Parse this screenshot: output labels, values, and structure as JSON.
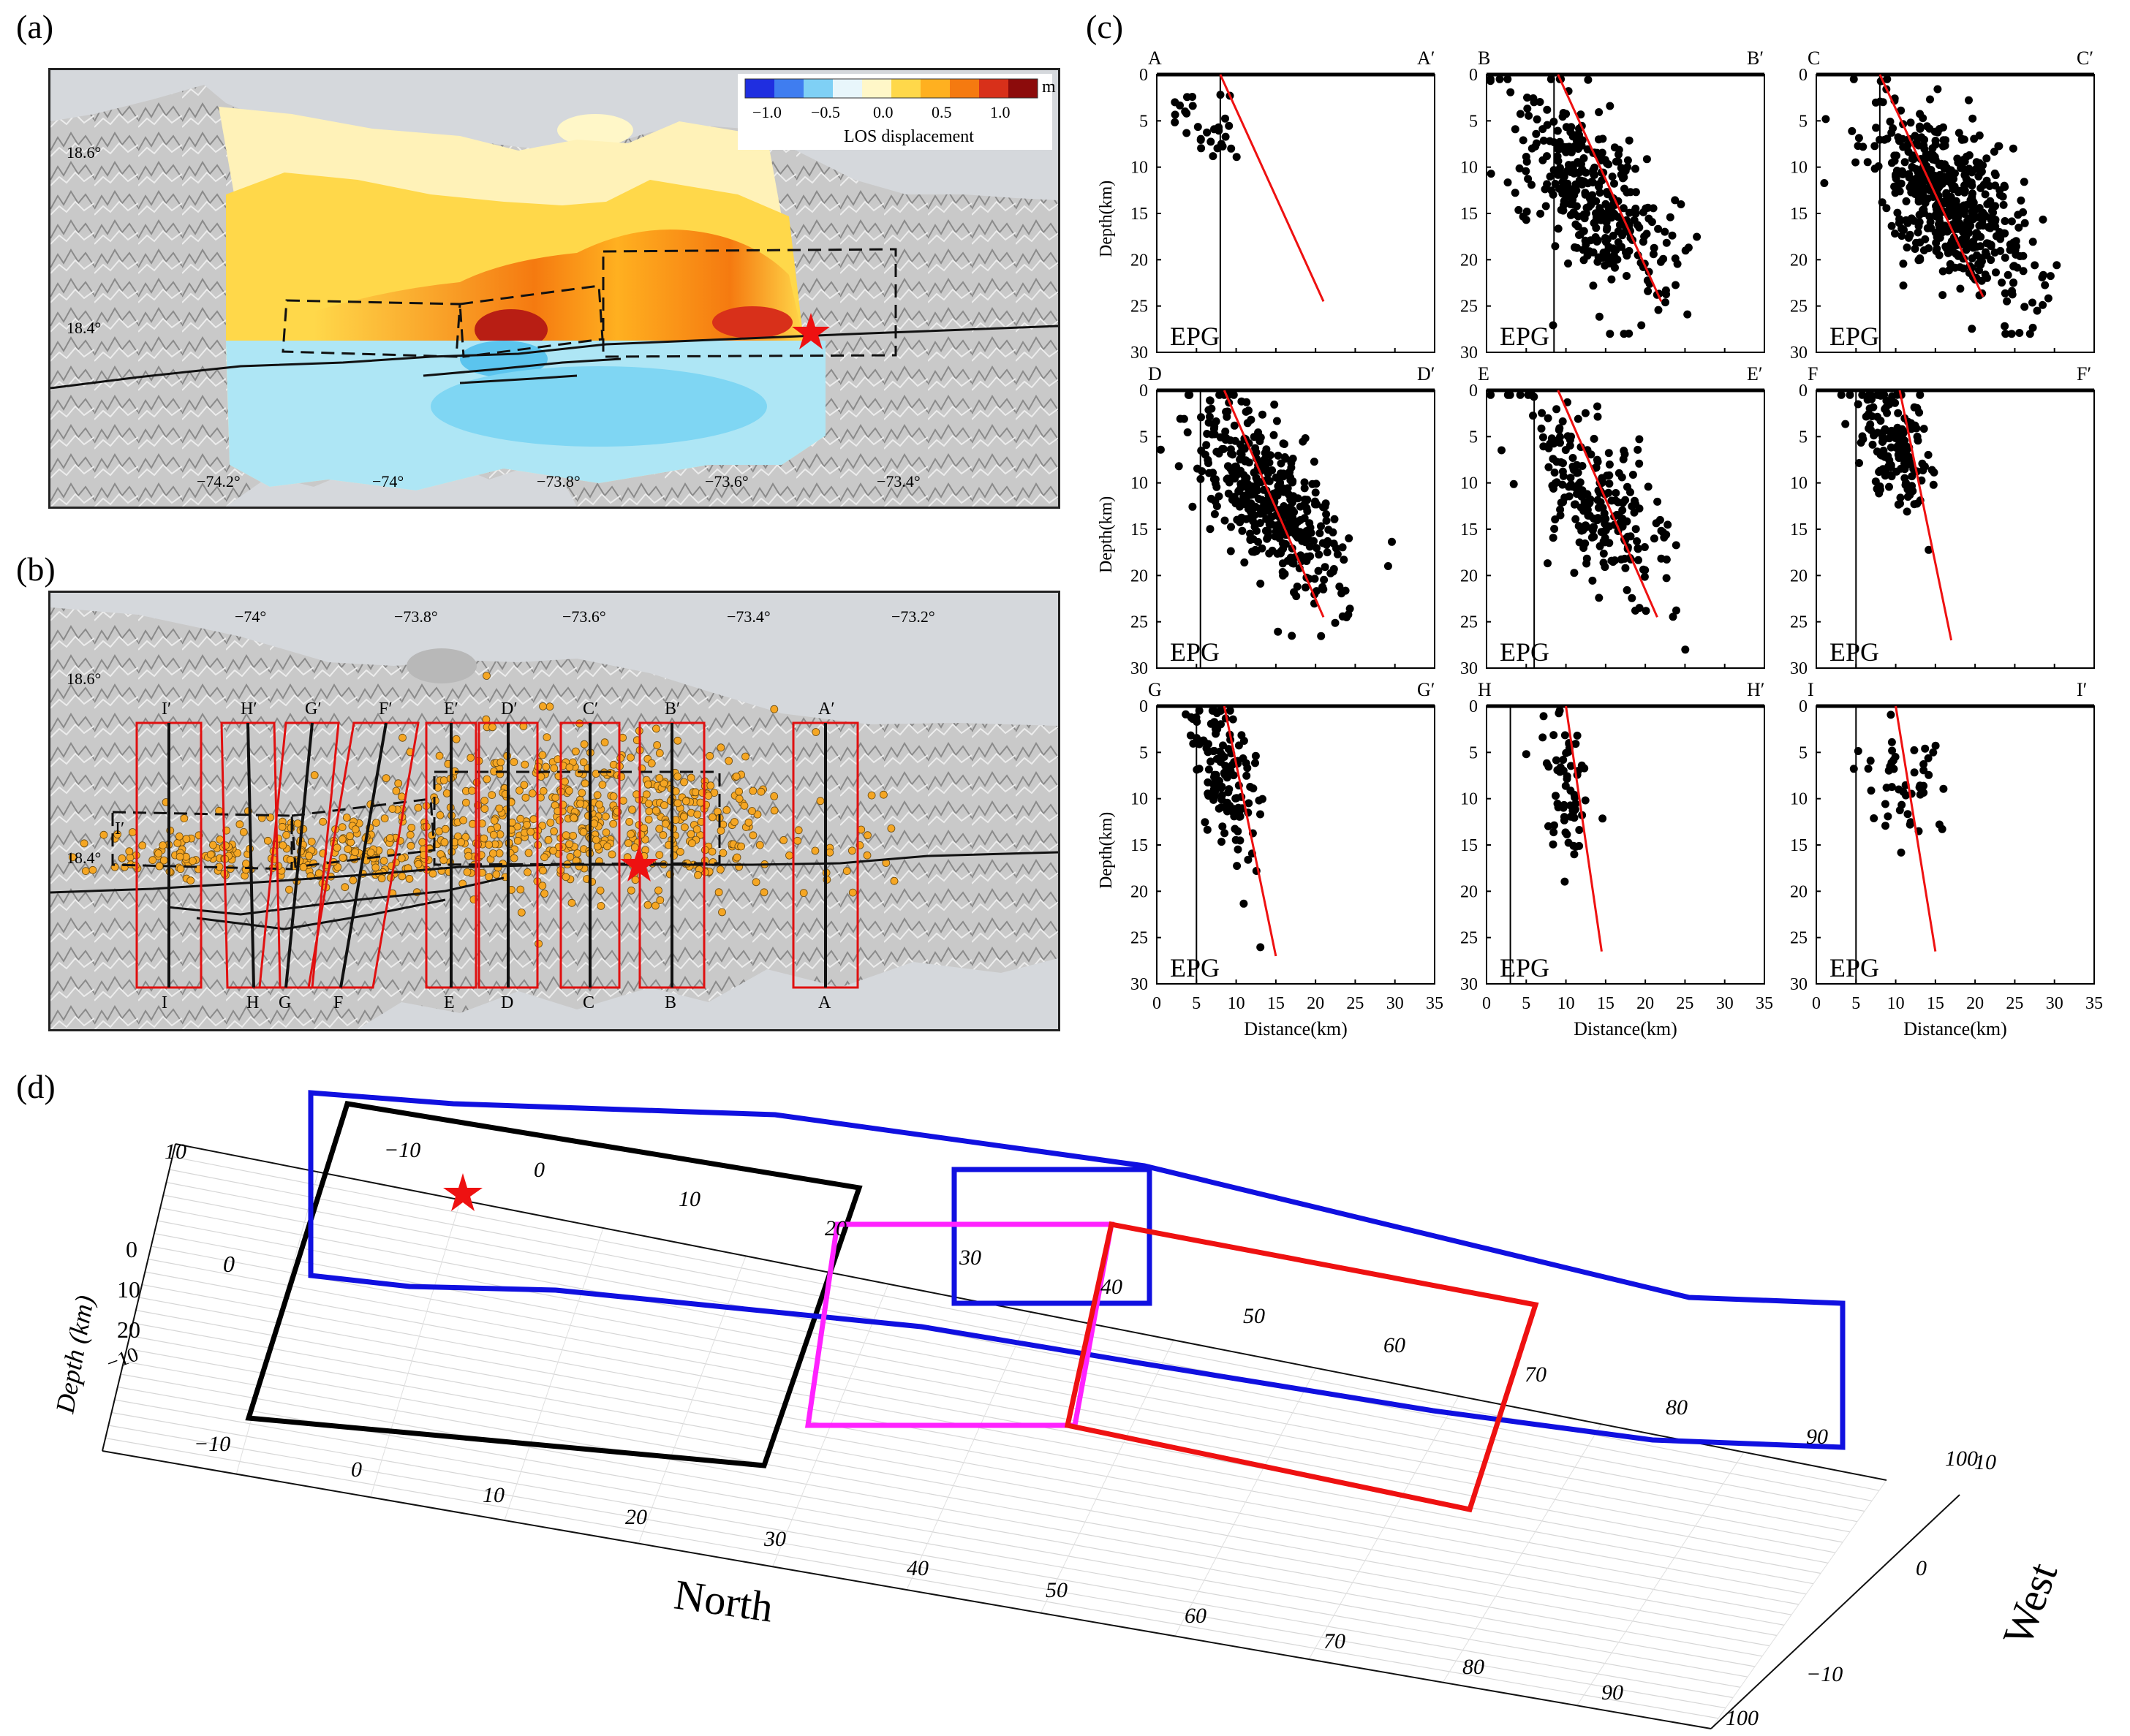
{
  "panel_labels": {
    "a": "(a)",
    "b": "(b)",
    "c": "(c)",
    "d": "(d)"
  },
  "colorbar": {
    "ticks": [
      "−1.0",
      "−0.5",
      "0.0",
      "0.5",
      "1.0"
    ],
    "unit": "m",
    "label": "LOS displacement",
    "colors": [
      "#1f2ee0",
      "#3f7df0",
      "#7fd0f5",
      "#e8f6fb",
      "#fff7c8",
      "#ffd84a",
      "#ffb020",
      "#f57a10",
      "#d8301a",
      "#8c0b0b"
    ]
  },
  "map_a": {
    "lat_labels": [
      "18.6°",
      "18.4°"
    ],
    "lon_labels": [
      "−74.2°",
      "−74°",
      "−73.8°",
      "−73.6°",
      "−73.4°"
    ]
  },
  "map_b": {
    "lat_labels": [
      "18.6°",
      "18.4°"
    ],
    "lon_labels": [
      "−74°",
      "−73.8°",
      "−73.6°",
      "−73.4°",
      "−73.2°"
    ],
    "profiles": [
      {
        "top": "I′",
        "bottom": "I"
      },
      {
        "top": "H′",
        "bottom": "H"
      },
      {
        "top": "G′",
        "bottom": "G"
      },
      {
        "top": "F′",
        "bottom": "F"
      },
      {
        "top": "E′",
        "bottom": "E"
      },
      {
        "top": "D′",
        "bottom": "D"
      },
      {
        "top": "C′",
        "bottom": "C"
      },
      {
        "top": "B′",
        "bottom": "B"
      },
      {
        "top": "A′",
        "bottom": "A"
      }
    ],
    "extra_label": "I′"
  },
  "profiles_c": {
    "ylabel": "Depth(km)",
    "xlabel": "Distance(km)",
    "epg_label": "EPG",
    "x_ticks": [
      "0",
      "5",
      "10",
      "15",
      "20",
      "25",
      "30",
      "35"
    ],
    "y_ticks": [
      "0",
      "5",
      "10",
      "15",
      "20",
      "25",
      "30"
    ],
    "plots": [
      {
        "left": "A",
        "right": "A′",
        "epg_x": 8,
        "line": [
          [
            8,
            0
          ],
          [
            21,
            24.5
          ]
        ],
        "n": 30,
        "cx": 7,
        "cy": 6,
        "sx": 2,
        "sy": 3
      },
      {
        "left": "B",
        "right": "B′",
        "epg_x": 8.5,
        "line": [
          [
            9,
            0
          ],
          [
            22,
            24.5
          ]
        ],
        "n": 360,
        "cx": 13,
        "cy": 13,
        "sx": 4,
        "sy": 5.5
      },
      {
        "left": "C",
        "right": "C′",
        "epg_x": 8,
        "line": [
          [
            8,
            0
          ],
          [
            21,
            24
          ]
        ],
        "n": 520,
        "cx": 17,
        "cy": 14,
        "sx": 4,
        "sy": 5
      },
      {
        "left": "D",
        "right": "D′",
        "epg_x": 5.5,
        "line": [
          [
            8.5,
            0
          ],
          [
            21,
            24.5
          ]
        ],
        "n": 420,
        "cx": 14,
        "cy": 12,
        "sx": 3.5,
        "sy": 5
      },
      {
        "left": "E",
        "right": "E′",
        "epg_x": 6,
        "line": [
          [
            9,
            0
          ],
          [
            21.5,
            24.5
          ]
        ],
        "n": 240,
        "cx": 14,
        "cy": 12,
        "sx": 3.5,
        "sy": 5
      },
      {
        "left": "F",
        "right": "F′",
        "epg_x": 5,
        "line": [
          [
            10.5,
            0
          ],
          [
            17,
            27
          ]
        ],
        "n": 160,
        "cx": 10,
        "cy": 6,
        "sx": 2,
        "sy": 3.5
      },
      {
        "left": "G",
        "right": "G′",
        "epg_x": 5,
        "line": [
          [
            8.5,
            0
          ],
          [
            15,
            27
          ]
        ],
        "n": 140,
        "cx": 8.5,
        "cy": 8,
        "sx": 1.8,
        "sy": 4
      },
      {
        "left": "H",
        "right": "H′",
        "epg_x": 3,
        "line": [
          [
            10,
            0
          ],
          [
            14.5,
            26.5
          ]
        ],
        "n": 65,
        "cx": 10,
        "cy": 9,
        "sx": 1.5,
        "sy": 4
      },
      {
        "left": "I",
        "right": "I′",
        "epg_x": 5,
        "line": [
          [
            10,
            0
          ],
          [
            15,
            26.5
          ]
        ],
        "n": 50,
        "cx": 11,
        "cy": 8,
        "sx": 2.5,
        "sy": 3
      }
    ]
  },
  "panel_d": {
    "zlabel": "Depth (km)",
    "north_label": "North",
    "west_label": "West",
    "z_ticks": [
      "0",
      "10",
      "20",
      "−10"
    ],
    "fault_axis_ticks": [
      "−10",
      "0",
      "10",
      "20",
      "30",
      "40",
      "50",
      "60",
      "70",
      "80",
      "90"
    ],
    "north_ticks": [
      "−10",
      "0",
      "10",
      "20",
      "30",
      "40",
      "50",
      "60",
      "70",
      "80",
      "90",
      "100"
    ],
    "west_ticks": [
      "10",
      "0",
      "−10"
    ],
    "extra_ticks": {
      "top_left": "10",
      "left_zero": "0",
      "right_corner": "100"
    },
    "fault_colors": {
      "black": "#000000",
      "blue": "#1010e0",
      "magenta": "#ff22ff",
      "red": "#ee1111"
    }
  }
}
